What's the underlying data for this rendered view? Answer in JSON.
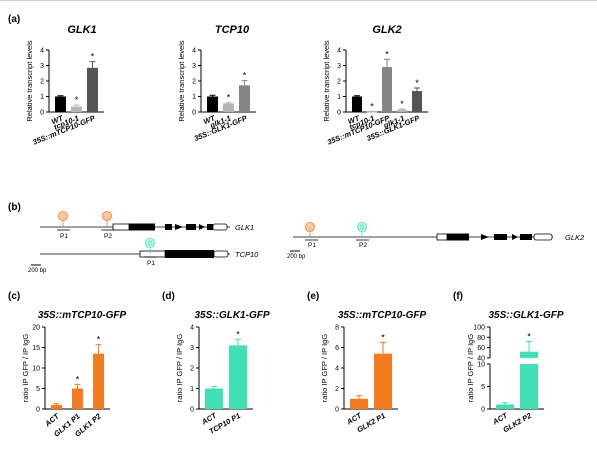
{
  "panels": {
    "a": "(a)",
    "b": "(b)",
    "c": "(c)",
    "d": "(d)",
    "e": "(e)",
    "f": "(f)"
  },
  "colors": {
    "black": "#000000",
    "light_grey": "#b4b4b4",
    "mid_grey": "#858585",
    "dark_grey": "#555555",
    "orange": "#f47b20",
    "teal": "#40e0b4"
  },
  "chart_data": [
    {
      "type": "bar",
      "panel": "a",
      "title": "GLK1",
      "ylabel": "Relative transcript levels",
      "ylim": [
        0,
        4
      ],
      "yticks": [
        0,
        1,
        2,
        3,
        4
      ],
      "categories": [
        "WT",
        "tcp10-1",
        "35S::mTCP10-GFP"
      ],
      "values": [
        1.0,
        0.35,
        2.85
      ],
      "errors": [
        0.05,
        0.1,
        0.4
      ],
      "significant": [
        false,
        true,
        true
      ],
      "colors": [
        "#000000",
        "#b4b4b4",
        "#555555"
      ]
    },
    {
      "type": "bar",
      "panel": "a",
      "title": "TCP10",
      "ylabel": "Relative transcript levels",
      "ylim": [
        0,
        4
      ],
      "yticks": [
        0,
        1,
        2,
        3,
        4
      ],
      "categories": [
        "WT",
        "glk1-1",
        "35S::GLK1-GFP"
      ],
      "values": [
        1.0,
        0.55,
        1.72
      ],
      "errors": [
        0.08,
        0.05,
        0.3
      ],
      "significant": [
        false,
        true,
        true
      ],
      "colors": [
        "#000000",
        "#b4b4b4",
        "#858585"
      ]
    },
    {
      "type": "bar",
      "panel": "a",
      "title": "GLK2",
      "ylabel": "Relative transcript levels",
      "ylim": [
        0,
        4
      ],
      "yticks": [
        0,
        1,
        2,
        3,
        4
      ],
      "categories": [
        "WT",
        "tcp10-1",
        "35S::mTCP10-GFP",
        "glk1-1",
        "35S::GLK1-GFP"
      ],
      "values": [
        1.0,
        0.02,
        2.9,
        0.15,
        1.35
      ],
      "errors": [
        0.05,
        0.02,
        0.5,
        0.05,
        0.2
      ],
      "significant": [
        false,
        true,
        true,
        true,
        true
      ],
      "colors": [
        "#000000",
        "#b4b4b4",
        "#858585",
        "#b4b4b4",
        "#555555"
      ]
    },
    {
      "type": "bar",
      "panel": "c",
      "title": "35S::mTCP10-GFP",
      "ylabel": "ratio IP GFP / IP IgG",
      "ylim": [
        0,
        20
      ],
      "yticks": [
        0,
        5,
        10,
        15,
        20
      ],
      "categories": [
        "ACT",
        "GLK1 P1",
        "GLK1 P2"
      ],
      "values": [
        1.0,
        5.0,
        13.5
      ],
      "errors": [
        0.3,
        1.0,
        2.2
      ],
      "significant": [
        false,
        true,
        true
      ],
      "color": "#f47b20"
    },
    {
      "type": "bar",
      "panel": "d",
      "title": "35S::GLK1-GFP",
      "ylabel": "ratio IP GFP / IP IgG",
      "ylim": [
        0,
        4
      ],
      "yticks": [
        0,
        1,
        2,
        3,
        4
      ],
      "categories": [
        "ACT",
        "TCP10 P1"
      ],
      "values": [
        1.0,
        3.1
      ],
      "errors": [
        0.1,
        0.3
      ],
      "significant": [
        false,
        true
      ],
      "color": "#40e0b4"
    },
    {
      "type": "bar",
      "panel": "e",
      "title": "35S::mTCP10-GFP",
      "ylabel": "ratio IP GFP / IP IgG",
      "ylim": [
        0,
        8
      ],
      "yticks": [
        0,
        2,
        4,
        6,
        8
      ],
      "categories": [
        "ACT",
        "GLK2 P1"
      ],
      "values": [
        1.0,
        5.4
      ],
      "errors": [
        0.3,
        1.1
      ],
      "significant": [
        false,
        true
      ],
      "color": "#f47b20"
    },
    {
      "type": "bar",
      "panel": "f",
      "title": "35S::GLK1-GFP",
      "ylabel": "ratio IP GFP / IP IgG",
      "ylim": [
        0,
        100
      ],
      "yticks": [
        0,
        5,
        10,
        40,
        60,
        80,
        100
      ],
      "scale": "broken axis 0–10 / 40–100",
      "categories": [
        "ACT",
        "GLK2 P2"
      ],
      "values": [
        1.0,
        52
      ],
      "errors": [
        0.4,
        20
      ],
      "significant": [
        false,
        true
      ],
      "color": "#40e0b4"
    }
  ],
  "gene_diagrams": [
    {
      "gene": "GLK1",
      "primers": [
        "P1",
        "P2"
      ]
    },
    {
      "gene": "TCP10",
      "primers": [
        "P1"
      ]
    },
    {
      "gene": "GLK2",
      "primers": [
        "P1",
        "P2"
      ]
    }
  ],
  "scale_bars": [
    "200 bp",
    "200 bp"
  ],
  "star": "*"
}
